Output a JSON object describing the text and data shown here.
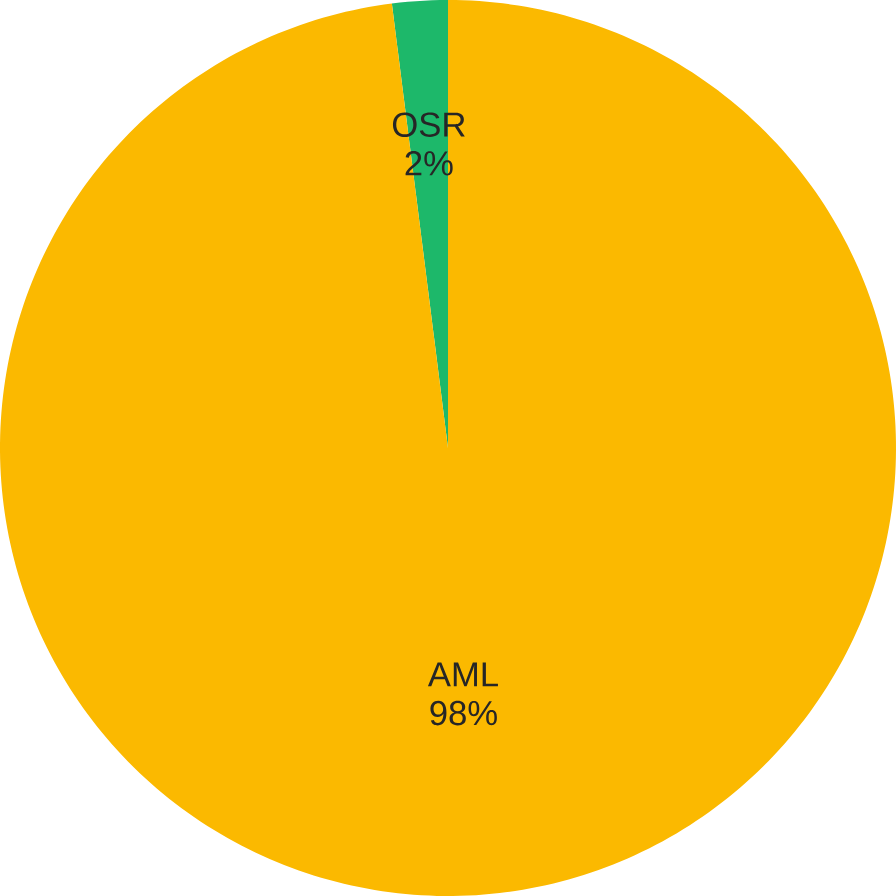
{
  "chart_data": {
    "type": "pie",
    "categories": [
      "OSR",
      "AML"
    ],
    "values": [
      2,
      98
    ],
    "colors": [
      "#1db86a",
      "#fbb900"
    ],
    "value_labels": [
      "2%",
      "98%"
    ]
  }
}
